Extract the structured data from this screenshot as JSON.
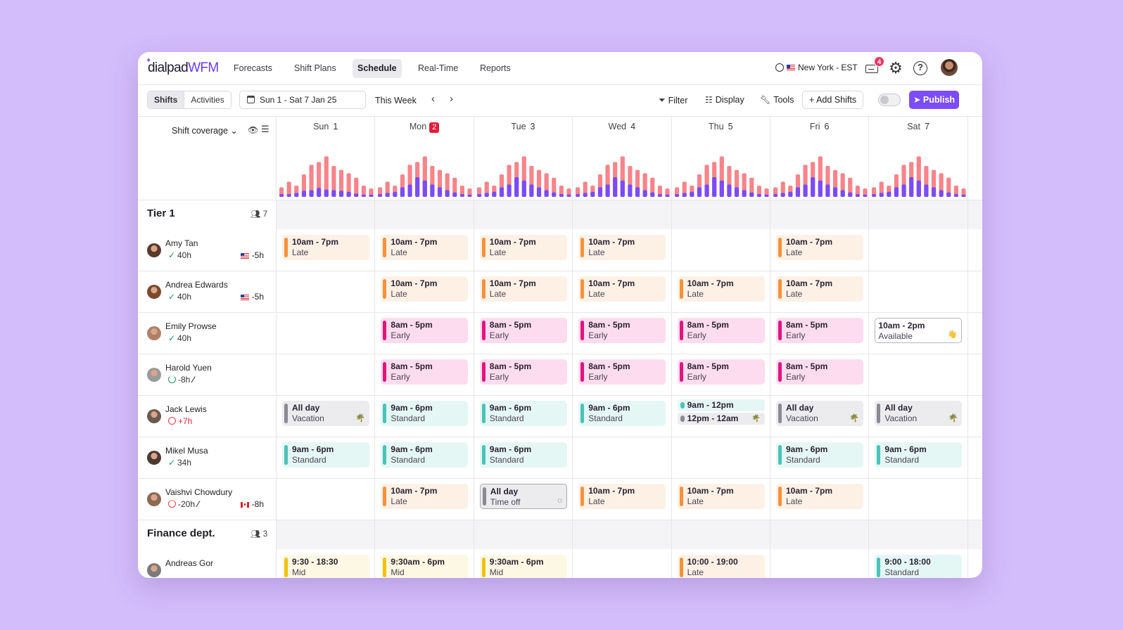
{
  "app": {
    "logo_main": "dialpad",
    "logo_accent": "WFM",
    "nav": [
      "Forecasts",
      "Shift Plans",
      "Schedule",
      "Real-Time",
      "Reports"
    ],
    "active_nav": "Schedule",
    "timezone": "New York - EST",
    "inbox_count": "4"
  },
  "toolbar": {
    "view_tabs": [
      "Shifts",
      "Activities"
    ],
    "date_range": "Sun 1 - Sat 7 Jan 25",
    "this_week": "This Week",
    "prev": "‹",
    "next": "›",
    "filter": "Filter",
    "display": "Display",
    "tools": "Tools",
    "add_shifts": "Add Shifts",
    "publish": "Publish"
  },
  "coverage": {
    "label": "Shift coverage"
  },
  "days": [
    {
      "name": "Sun",
      "num": "1"
    },
    {
      "name": "Mon",
      "num": "2",
      "today": true
    },
    {
      "name": "Tue",
      "num": "3"
    },
    {
      "name": "Wed",
      "num": "4"
    },
    {
      "name": "Thu",
      "num": "5"
    },
    {
      "name": "Fri",
      "num": "6"
    },
    {
      "name": "Sat",
      "num": "7"
    }
  ],
  "coverage_chart": {
    "colors": {
      "demand": "#f7848a",
      "scheduled": "#7b4cf7"
    },
    "demand": [
      0.17,
      0.27,
      0.2,
      0.4,
      0.57,
      0.62,
      0.72,
      0.55,
      0.48,
      0.42,
      0.34,
      0.2,
      0.15
    ],
    "scheduled": [
      0.05,
      0.07,
      0.09,
      0.17,
      0.22,
      0.35,
      0.29,
      0.22,
      0.17,
      0.12,
      0.08,
      0.05,
      0.04
    ],
    "scheduled_sun": [
      0.05,
      0.05,
      0.07,
      0.11,
      0.12,
      0.16,
      0.13,
      0.12,
      0.11,
      0.09,
      0.06,
      0.04,
      0.04
    ]
  },
  "groups": [
    {
      "title": "Tier 1",
      "count": "7",
      "agents": [
        {
          "name": "Amy Tan",
          "hours": "40h",
          "status": "check",
          "flag": "us",
          "diff": "-5h",
          "avatar": "#5a3a2e",
          "shifts": [
            {
              "day": 0,
              "time": "10am - 7pm",
              "kind": "Late",
              "type": "late"
            },
            {
              "day": 1,
              "time": "10am - 7pm",
              "kind": "Late",
              "type": "late"
            },
            {
              "day": 2,
              "time": "10am - 7pm",
              "kind": "Late",
              "type": "late"
            },
            {
              "day": 3,
              "time": "10am - 7pm",
              "kind": "Late",
              "type": "late"
            },
            {
              "day": 5,
              "time": "10am - 7pm",
              "kind": "Late",
              "type": "late"
            }
          ]
        },
        {
          "name": "Andrea Edwards",
          "hours": "40h",
          "status": "check",
          "flag": "us",
          "diff": "-5h",
          "avatar": "#7a4a2e",
          "shifts": [
            {
              "day": 1,
              "time": "10am - 7pm",
              "kind": "Late",
              "type": "late"
            },
            {
              "day": 2,
              "time": "10am - 7pm",
              "kind": "Late",
              "type": "late"
            },
            {
              "day": 3,
              "time": "10am - 7pm",
              "kind": "Late",
              "type": "late"
            },
            {
              "day": 4,
              "time": "10am - 7pm",
              "kind": "Late",
              "type": "late"
            },
            {
              "day": 5,
              "time": "10am - 7pm",
              "kind": "Late",
              "type": "late"
            }
          ]
        },
        {
          "name": "Emily Prowse",
          "hours": "40h",
          "status": "check",
          "flag": "",
          "diff": "",
          "avatar": "#b0806a",
          "shifts": [
            {
              "day": 1,
              "time": "8am - 5pm",
              "kind": "Early",
              "type": "early"
            },
            {
              "day": 2,
              "time": "8am - 5pm",
              "kind": "Early",
              "type": "early"
            },
            {
              "day": 3,
              "time": "8am - 5pm",
              "kind": "Early",
              "type": "early"
            },
            {
              "day": 4,
              "time": "8am - 5pm",
              "kind": "Early",
              "type": "early"
            },
            {
              "day": 5,
              "time": "8am - 5pm",
              "kind": "Early",
              "type": "early"
            },
            {
              "day": 6,
              "time": "10am - 2pm",
              "kind": "Available",
              "type": "available",
              "tag": "👋"
            }
          ]
        },
        {
          "name": "Harold Yuen",
          "hours": "-8h",
          "status": "ring-green",
          "flag": "",
          "diff": "",
          "extra": "⚒",
          "avatar": "#9a9a9a",
          "shifts": [
            {
              "day": 1,
              "time": "8am - 5pm",
              "kind": "Early",
              "type": "early"
            },
            {
              "day": 2,
              "time": "8am - 5pm",
              "kind": "Early",
              "type": "early"
            },
            {
              "day": 3,
              "time": "8am - 5pm",
              "kind": "Early",
              "type": "early"
            },
            {
              "day": 4,
              "time": "8am - 5pm",
              "kind": "Early",
              "type": "early"
            },
            {
              "day": 5,
              "time": "8am - 5pm",
              "kind": "Early",
              "type": "early"
            }
          ]
        },
        {
          "name": "Jack Lewis",
          "hours": "+7h",
          "status": "ring-red",
          "flag": "",
          "diff": "",
          "avatar": "#6b5a50",
          "shifts": [
            {
              "day": 0,
              "time": "All day",
              "kind": "Vacation",
              "type": "vacation",
              "tag": "🌴"
            },
            {
              "day": 1,
              "time": "9am - 6pm",
              "kind": "Standard",
              "type": "standard"
            },
            {
              "day": 2,
              "time": "9am - 6pm",
              "kind": "Standard",
              "type": "standard"
            },
            {
              "day": 3,
              "time": "9am - 6pm",
              "kind": "Standard",
              "type": "standard"
            },
            {
              "day": 4,
              "split": [
                {
                  "time": "9am - 12pm",
                  "type": "standard"
                },
                {
                  "time": "12pm - 12am",
                  "type": "vacation",
                  "tag": "🌴"
                }
              ]
            },
            {
              "day": 5,
              "time": "All day",
              "kind": "Vacation",
              "type": "vacation",
              "tag": "🌴"
            },
            {
              "day": 6,
              "time": "All day",
              "kind": "Vacation",
              "type": "vacation",
              "tag": "🌴"
            }
          ]
        },
        {
          "name": "Mikel Musa",
          "hours": "34h",
          "status": "check",
          "flag": "",
          "diff": "",
          "avatar": "#4a3a32",
          "shifts": [
            {
              "day": 0,
              "time": "9am - 6pm",
              "kind": "Standard",
              "type": "standard"
            },
            {
              "day": 1,
              "time": "9am - 6pm",
              "kind": "Standard",
              "type": "standard"
            },
            {
              "day": 2,
              "time": "9am - 6pm",
              "kind": "Standard",
              "type": "standard"
            },
            {
              "day": 5,
              "time": "9am - 6pm",
              "kind": "Standard",
              "type": "standard"
            },
            {
              "day": 6,
              "time": "9am - 6pm",
              "kind": "Standard",
              "type": "standard"
            }
          ]
        },
        {
          "name": "Vaishvi Chowdury",
          "hours": "-20h",
          "status": "ring-orange",
          "flag": "ca",
          "diff": "-8h",
          "extra": "⚒",
          "avatar": "#8a6a52",
          "shifts": [
            {
              "day": 1,
              "time": "10am - 7pm",
              "kind": "Late",
              "type": "late"
            },
            {
              "day": 2,
              "time": "All day",
              "kind": "Time off",
              "type": "timeoff",
              "tag": "◌"
            },
            {
              "day": 3,
              "time": "10am - 7pm",
              "kind": "Late",
              "type": "late"
            },
            {
              "day": 4,
              "time": "10am - 7pm",
              "kind": "Late",
              "type": "late"
            },
            {
              "day": 5,
              "time": "10am - 7pm",
              "kind": "Late",
              "type": "late"
            }
          ]
        }
      ]
    },
    {
      "title": "Finance dept.",
      "count": "3",
      "agents": [
        {
          "name": "Andreas Gor",
          "hours": "",
          "status": "",
          "flag": "",
          "diff": "",
          "avatar": "#7a7a7a",
          "shifts": [
            {
              "day": 0,
              "time": "9:30 - 18:30",
              "kind": "Mid",
              "type": "mid"
            },
            {
              "day": 1,
              "time": "9:30am - 6pm",
              "kind": "Mid",
              "type": "mid"
            },
            {
              "day": 2,
              "time": "9:30am - 6pm",
              "kind": "Mid",
              "type": "mid"
            },
            {
              "day": 4,
              "time": "10:00 - 19:00",
              "kind": "Late",
              "type": "late"
            },
            {
              "day": 6,
              "time": "9:00 - 18:00",
              "kind": "Standard",
              "type": "standard"
            }
          ]
        }
      ]
    }
  ]
}
